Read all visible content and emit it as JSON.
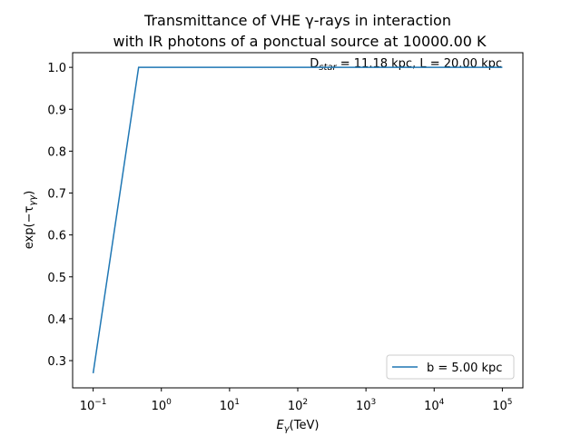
{
  "chart_data": {
    "type": "line",
    "title": [
      "Transmittance of VHE γ-rays in interaction",
      "with IR photons of a ponctual source at 10000.00 K"
    ],
    "annotation": {
      "base": "D",
      "sub": "star",
      "rest": " = 11.18 kpc, L = 20.00 kpc"
    },
    "x_label": {
      "base": "E",
      "sub": "γ",
      "rest": "(TeV)"
    },
    "y_label": {
      "base": "exp(−τ",
      "sub": "γγ",
      "rest": ")"
    },
    "x_scale": "log",
    "x": [
      0.1,
      0.464,
      2.154,
      10,
      46.42,
      215.4,
      1000,
      4642,
      21544,
      100000
    ],
    "series": [
      {
        "name": "b = 5.00 kpc",
        "color": "#1f77b4",
        "values": [
          0.27,
          1.0,
          1.0,
          1.0,
          1.0,
          1.0,
          1.0,
          1.0,
          1.0,
          1.0
        ]
      }
    ],
    "xlim": [
      0.05,
      200000
    ],
    "ylim": [
      0.235,
      1.035
    ],
    "xticks": [
      {
        "value": 0.1,
        "label": "10",
        "exponent": "−1"
      },
      {
        "value": 1,
        "label": "10",
        "exponent": "0"
      },
      {
        "value": 10,
        "label": "10",
        "exponent": "1"
      },
      {
        "value": 100,
        "label": "10",
        "exponent": "2"
      },
      {
        "value": 1000,
        "label": "10",
        "exponent": "3"
      },
      {
        "value": 10000,
        "label": "10",
        "exponent": "4"
      },
      {
        "value": 100000,
        "label": "10",
        "exponent": "5"
      }
    ],
    "yticks": [
      {
        "value": 0.3,
        "label": "0.3"
      },
      {
        "value": 0.4,
        "label": "0.4"
      },
      {
        "value": 0.5,
        "label": "0.5"
      },
      {
        "value": 0.6,
        "label": "0.6"
      },
      {
        "value": 0.7,
        "label": "0.7"
      },
      {
        "value": 0.8,
        "label": "0.8"
      },
      {
        "value": 0.9,
        "label": "0.9"
      },
      {
        "value": 1.0,
        "label": "1.0"
      }
    ],
    "legend": "lower right"
  }
}
